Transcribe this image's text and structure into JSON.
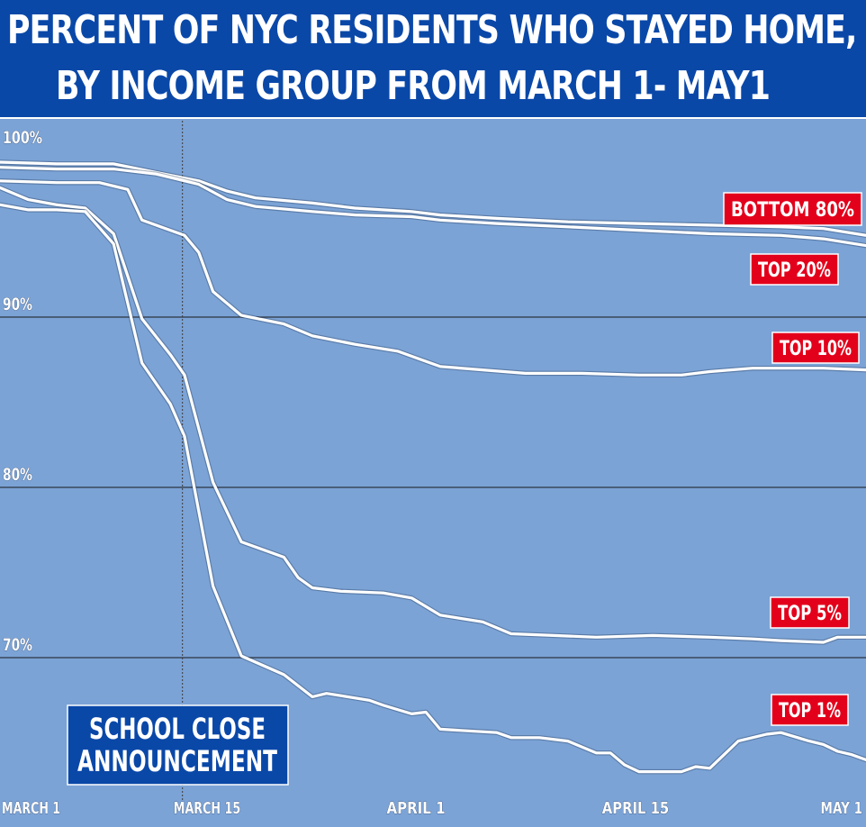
{
  "title": {
    "line1": "PERCENT OF NYC RESIDENTS WHO STAYED HOME,",
    "line2": "BY INCOME GROUP FROM MARCH 1- MAY1"
  },
  "colors": {
    "background": "#7ba3d6",
    "title_bar": "#0a48a8",
    "line": "#ffffff",
    "label_box": "#e3001b",
    "annotation_box": "#0a48a8",
    "gridline": "#1a1a1a"
  },
  "chart_data": {
    "type": "line",
    "title": "PERCENT OF NYC RESIDENTS WHO STAYED HOME, BY INCOME GROUP FROM MARCH 1- MAY1",
    "xlabel": "",
    "ylabel": "",
    "x_ticks": [
      {
        "day": 0,
        "label": "MARCH 1"
      },
      {
        "day": 14,
        "label": "MARCH 15"
      },
      {
        "day": 31,
        "label": "APRIL 1"
      },
      {
        "day": 45,
        "label": "APRIL 15"
      },
      {
        "day": 61,
        "label": "MAY 1"
      }
    ],
    "y_ticks": [
      {
        "value": 100,
        "label": "100%"
      },
      {
        "value": 90,
        "label": "90%"
      },
      {
        "value": 80,
        "label": "80%"
      },
      {
        "value": 70,
        "label": "70%"
      }
    ],
    "xlim": [
      0,
      61
    ],
    "ylim": [
      60.5,
      101
    ],
    "grid": "horizontal",
    "series": [
      {
        "name": "BOTTOM 80%",
        "points": [
          [
            0,
            99.1
          ],
          [
            4,
            99.0
          ],
          [
            8,
            99.0
          ],
          [
            11,
            98.5
          ],
          [
            14,
            98.0
          ],
          [
            16,
            97.4
          ],
          [
            18,
            97.0
          ],
          [
            22,
            96.7
          ],
          [
            25,
            96.4
          ],
          [
            29,
            96.2
          ],
          [
            31,
            96.0
          ],
          [
            35,
            95.8
          ],
          [
            40,
            95.6
          ],
          [
            45,
            95.5
          ],
          [
            50,
            95.4
          ],
          [
            55,
            95.3
          ],
          [
            58,
            95.2
          ],
          [
            61,
            94.8
          ]
        ]
      },
      {
        "name": "TOP 20%",
        "points": [
          [
            0,
            98.8
          ],
          [
            4,
            98.7
          ],
          [
            8,
            98.7
          ],
          [
            11,
            98.4
          ],
          [
            14,
            97.8
          ],
          [
            16,
            96.9
          ],
          [
            18,
            96.5
          ],
          [
            22,
            96.2
          ],
          [
            25,
            96.0
          ],
          [
            29,
            95.9
          ],
          [
            31,
            95.7
          ],
          [
            35,
            95.5
          ],
          [
            40,
            95.3
          ],
          [
            45,
            95.1
          ],
          [
            50,
            94.9
          ],
          [
            55,
            94.8
          ],
          [
            58,
            94.6
          ],
          [
            61,
            94.2
          ]
        ]
      },
      {
        "name": "TOP 10%",
        "points": [
          [
            0,
            98.0
          ],
          [
            4,
            97.9
          ],
          [
            7,
            97.9
          ],
          [
            9,
            97.5
          ],
          [
            10,
            95.7
          ],
          [
            13,
            94.8
          ],
          [
            14,
            93.8
          ],
          [
            15,
            91.5
          ],
          [
            17,
            90.1
          ],
          [
            20,
            89.6
          ],
          [
            22,
            88.9
          ],
          [
            25,
            88.4
          ],
          [
            28,
            88.0
          ],
          [
            30,
            87.4
          ],
          [
            31,
            87.1
          ],
          [
            34,
            86.9
          ],
          [
            37,
            86.7
          ],
          [
            41,
            86.7
          ],
          [
            45,
            86.6
          ],
          [
            48,
            86.6
          ],
          [
            50,
            86.8
          ],
          [
            53,
            87.0
          ],
          [
            56,
            87.0
          ],
          [
            58,
            87.0
          ],
          [
            61,
            86.9
          ]
        ]
      },
      {
        "name": "TOP 5%",
        "points": [
          [
            0,
            97.6
          ],
          [
            2,
            96.9
          ],
          [
            4,
            96.6
          ],
          [
            6,
            96.4
          ],
          [
            8,
            94.9
          ],
          [
            10,
            89.9
          ],
          [
            12,
            87.8
          ],
          [
            13,
            86.6
          ],
          [
            15,
            80.3
          ],
          [
            17,
            76.8
          ],
          [
            20,
            75.9
          ],
          [
            21,
            74.7
          ],
          [
            22,
            74.1
          ],
          [
            24,
            73.9
          ],
          [
            27,
            73.8
          ],
          [
            29,
            73.5
          ],
          [
            31,
            72.5
          ],
          [
            34,
            72.1
          ],
          [
            36,
            71.4
          ],
          [
            39,
            71.3
          ],
          [
            42,
            71.2
          ],
          [
            46,
            71.3
          ],
          [
            50,
            71.2
          ],
          [
            53,
            71.1
          ],
          [
            55,
            71.0
          ],
          [
            58,
            70.9
          ],
          [
            59,
            71.2
          ],
          [
            61,
            71.2
          ]
        ]
      },
      {
        "name": "TOP 1%",
        "points": [
          [
            0,
            96.6
          ],
          [
            2,
            96.3
          ],
          [
            4,
            96.3
          ],
          [
            6,
            96.2
          ],
          [
            8,
            94.3
          ],
          [
            10,
            87.3
          ],
          [
            12,
            84.9
          ],
          [
            13,
            83.0
          ],
          [
            15,
            74.2
          ],
          [
            17,
            70.1
          ],
          [
            20,
            69.0
          ],
          [
            22,
            67.7
          ],
          [
            23,
            67.9
          ],
          [
            26,
            67.5
          ],
          [
            27,
            67.2
          ],
          [
            29,
            66.7
          ],
          [
            30,
            66.8
          ],
          [
            31,
            65.8
          ],
          [
            33,
            65.7
          ],
          [
            35,
            65.6
          ],
          [
            36,
            65.3
          ],
          [
            38,
            65.3
          ],
          [
            40,
            65.1
          ],
          [
            42,
            64.4
          ],
          [
            43,
            64.4
          ],
          [
            44,
            63.7
          ],
          [
            45,
            63.3
          ],
          [
            48,
            63.3
          ],
          [
            49,
            63.6
          ],
          [
            50,
            63.5
          ],
          [
            52,
            65.1
          ],
          [
            54,
            65.5
          ],
          [
            55,
            65.6
          ],
          [
            57,
            65.1
          ],
          [
            58,
            64.9
          ],
          [
            59,
            64.5
          ],
          [
            60,
            64.3
          ],
          [
            61,
            64.0
          ]
        ]
      }
    ],
    "series_labels": [
      "BOTTOM 80%",
      "TOP 20%",
      "TOP 10%",
      "TOP 5%",
      "TOP 1%"
    ],
    "annotations": [
      {
        "text_lines": [
          "SCHOOL CLOSE",
          "ANNOUNCEMENT"
        ],
        "day": 14.5
      }
    ]
  }
}
